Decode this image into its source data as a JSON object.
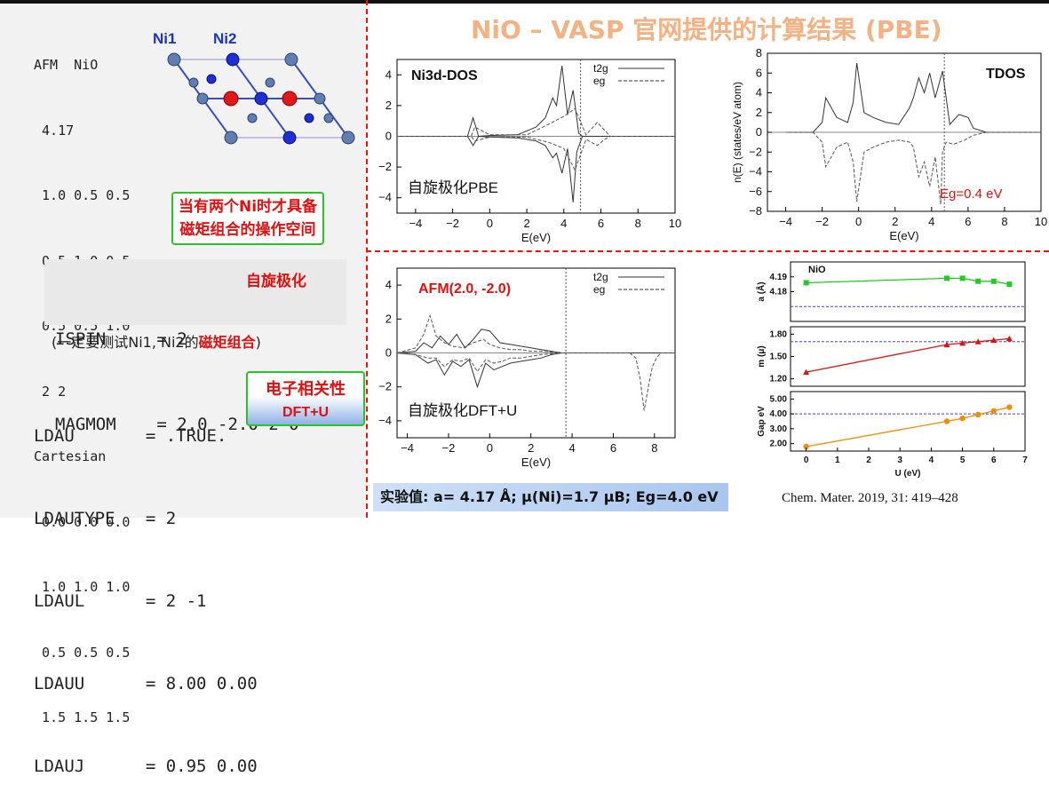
{
  "poscar": {
    "lines": [
      "AFM  NiO",
      " 4.17",
      " 1.0 0.5 0.5",
      " 0.5 1.0 0.5",
      " 0.5 0.5 1.0",
      " 2 2",
      "Cartesian",
      " 0.0 0.0 0.0",
      " 1.0 1.0 1.0",
      " 0.5 0.5 0.5",
      " 1.5 1.5 1.5"
    ]
  },
  "structure": {
    "ni1_label": "Ni1",
    "ni2_label": "Ni2"
  },
  "magnetic_note": {
    "line1": "当有两个Ni时才具备",
    "line2": "磁矩组合的操作空间"
  },
  "incar_spin": {
    "lines": [
      "ISPIN     = 2",
      "MAGMOM    = 2.0 -2.0 2*0"
    ],
    "label": "自旋极化",
    "note_before": "(一定要测试Ni1, Ni2的",
    "note_highlight": "磁矩组合",
    "note_after": ")"
  },
  "incar_ldau": {
    "lines": [
      "LDAU       = .TRUE.",
      "LDAUTYPE   = 2",
      "LDAUL      = 2 -1",
      "LDAUU      = 8.00 0.00",
      "LDAUJ      = 0.95 0.00"
    ],
    "box_line1": "电子相关性",
    "box_line2": "DFT+U"
  },
  "headline": "NiO – VASP 官网提供的计算结果 (PBE)",
  "experiment": {
    "label": "实验值:",
    "text": "a= 4.17 Å; μ(Ni)=1.7 μB; Eg=4.0 eV"
  },
  "citation": "Chem. Mater. 2019, 31: 419–428",
  "colors": {
    "accent_red": "#e01010",
    "green_border": "#28c428",
    "headline": "#f4b183",
    "dash": "#ee1111"
  },
  "chart_data": [
    {
      "id": "ni3d_pbe",
      "type": "line",
      "title": "Ni3d-DOS",
      "subtitle": "自旋极化PBE",
      "xlabel": "E(eV)",
      "ylabel": "",
      "xlim": [
        -5,
        10
      ],
      "ylim": [
        -5,
        5
      ],
      "xticks": [
        -4,
        -2,
        0,
        2,
        4,
        6,
        8,
        10
      ],
      "yticks": [
        -4,
        -2,
        0,
        2,
        4
      ],
      "fermi_x": 4.9,
      "legend": [
        "t2g",
        "eg"
      ],
      "series": [
        {
          "name": "t2g",
          "style": "solid",
          "x": [
            -5,
            -1.2,
            -0.9,
            -0.6,
            0,
            1.5,
            2.5,
            3.0,
            3.4,
            3.6,
            3.9,
            4.2,
            4.5,
            4.8,
            5,
            10
          ],
          "y": [
            0,
            0,
            1.2,
            0,
            0.05,
            0.1,
            0.6,
            1.2,
            2.5,
            2.0,
            4.6,
            1.4,
            3.0,
            0.2,
            0,
            0
          ]
        },
        {
          "name": "eg",
          "style": "dashed",
          "x": [
            -5,
            -1,
            -0.8,
            0,
            2,
            3.2,
            4.0,
            4.6,
            5.2,
            5.8,
            6.2,
            6.5,
            10
          ],
          "y": [
            0,
            0,
            0.6,
            0.1,
            0.1,
            0.8,
            1.3,
            1.8,
            0.1,
            0.9,
            0.4,
            0,
            0
          ]
        },
        {
          "name": "t2g-down",
          "style": "solid",
          "x": [
            -5,
            -1.2,
            -0.9,
            -0.6,
            0,
            1.5,
            2.5,
            3.0,
            3.4,
            3.6,
            3.9,
            4.2,
            4.5,
            4.7,
            5,
            10
          ],
          "y": [
            0,
            0,
            -0.6,
            0,
            -0.05,
            -0.1,
            -0.3,
            -0.6,
            -1.4,
            -1.1,
            -2.4,
            -0.8,
            -4.3,
            -1.0,
            0,
            0
          ]
        },
        {
          "name": "eg-down",
          "style": "dashed",
          "x": [
            -5,
            -1,
            -0.8,
            0,
            2,
            3.2,
            4.0,
            4.6,
            5.2,
            5.8,
            6.2,
            6.5,
            10
          ],
          "y": [
            0,
            0,
            -0.3,
            -0.05,
            -0.05,
            -0.4,
            -0.8,
            -2.2,
            -0.2,
            -0.6,
            -0.2,
            0,
            0
          ]
        }
      ]
    },
    {
      "id": "tdos_pbe",
      "type": "line",
      "title": "TDOS",
      "xlabel": "E(eV)",
      "ylabel": "n(E) (states/eV atom)",
      "xlim": [
        -5,
        10
      ],
      "ylim": [
        -8,
        8
      ],
      "xticks": [
        -4,
        -2,
        0,
        2,
        4,
        6,
        8,
        10
      ],
      "yticks": [
        -8,
        -6,
        -4,
        -2,
        0,
        2,
        4,
        6,
        8
      ],
      "fermi_x": 4.7,
      "annotation": "Eg=0.4 eV",
      "series": [
        {
          "name": "up",
          "style": "solid",
          "x": [
            -4,
            -2.5,
            -2.0,
            -1.8,
            -1.2,
            -0.6,
            -0.3,
            -0.1,
            0.3,
            0.8,
            1.5,
            2.2,
            2.8,
            3.0,
            3.3,
            3.6,
            3.9,
            4.2,
            4.6,
            5.0,
            5.5,
            6.0,
            6.3,
            7,
            10
          ],
          "y": [
            0,
            0,
            1,
            3.5,
            1.5,
            1.0,
            3.0,
            7.0,
            2.0,
            1.5,
            1.0,
            0.8,
            2.5,
            3.5,
            5.5,
            4.0,
            6.0,
            3.5,
            6.2,
            0.8,
            1.8,
            1.5,
            0.4,
            0,
            0
          ]
        },
        {
          "name": "down",
          "style": "dashed",
          "x": [
            -4,
            -2.5,
            -2.0,
            -1.8,
            -1.2,
            -0.6,
            -0.3,
            -0.1,
            0.3,
            0.8,
            1.5,
            2.2,
            2.8,
            3.0,
            3.3,
            3.6,
            3.9,
            4.2,
            4.5,
            4.6,
            4.8,
            5.2,
            5.8,
            6.3,
            7,
            10
          ],
          "y": [
            0,
            0,
            -1,
            -3.5,
            -1.5,
            -1.0,
            -3.0,
            -7.0,
            -2.0,
            -1.5,
            -1.0,
            -0.8,
            -1.0,
            -1.5,
            -4.5,
            -3.0,
            -5.5,
            -2.5,
            -7.3,
            -2.0,
            -1.0,
            -1.2,
            -0.8,
            -0.3,
            0,
            0
          ]
        }
      ]
    },
    {
      "id": "ni3d_dftu",
      "type": "line",
      "title": "AFM(2.0, -2.0)",
      "subtitle": "自旋极化DFT+U",
      "xlabel": "E(eV)",
      "ylabel": "",
      "xlim": [
        -4.5,
        9
      ],
      "ylim": [
        -5,
        5
      ],
      "xticks": [
        -4,
        -2,
        0,
        2,
        4,
        6,
        8
      ],
      "yticks": [
        -4,
        -2,
        0,
        2,
        4
      ],
      "fermi_x": 3.7,
      "legend": [
        "t2g",
        "eg"
      ],
      "series": [
        {
          "name": "t2g",
          "style": "solid",
          "x": [
            -4.5,
            -3.6,
            -3.2,
            -2.8,
            -2.4,
            -2.0,
            -1.6,
            -1.2,
            -0.8,
            -0.4,
            0,
            0.5,
            1.0,
            1.5,
            2.0,
            2.5,
            3.0,
            3.5,
            9
          ],
          "y": [
            0,
            0.1,
            0.6,
            0.3,
            1.0,
            0.5,
            1.1,
            0.3,
            0.8,
            1.4,
            1.3,
            0.6,
            0.5,
            0.4,
            0.3,
            0.2,
            0.1,
            0,
            0
          ]
        },
        {
          "name": "eg",
          "style": "dashed",
          "x": [
            -4.5,
            -3.6,
            -3.2,
            -2.9,
            -2.6,
            -2.2,
            -1.8,
            -1.3,
            -0.8,
            -0.3,
            0,
            0.5,
            1.0,
            1.5,
            2.0,
            2.5,
            3.0,
            3.5,
            9
          ],
          "y": [
            0,
            0.3,
            1.1,
            2.2,
            1.0,
            0.6,
            0.4,
            0.3,
            0.6,
            0.8,
            0.5,
            0.3,
            0.2,
            0.2,
            0.1,
            0.1,
            0.05,
            0,
            0
          ]
        },
        {
          "name": "t2g-down",
          "style": "solid",
          "x": [
            -4.5,
            -3.6,
            -3.0,
            -2.6,
            -2.2,
            -1.8,
            -1.4,
            -1.0,
            -0.6,
            -0.2,
            0.2,
            0.6,
            1.0,
            1.5,
            2.0,
            2.5,
            3.0,
            3.5,
            9
          ],
          "y": [
            0,
            -0.1,
            -0.6,
            -0.4,
            -1.3,
            -0.5,
            -0.8,
            -0.4,
            -2.0,
            -0.6,
            -1.0,
            -0.8,
            -0.6,
            -0.5,
            -0.4,
            -0.3,
            -0.1,
            0,
            0
          ]
        },
        {
          "name": "eg-down",
          "style": "dashed",
          "x": [
            -4.5,
            -3.6,
            -3.0,
            -2.6,
            -2.2,
            -1.8,
            -1.4,
            -1.0,
            -0.6,
            -0.2,
            0.2,
            0.6,
            1.0,
            1.5,
            2.0,
            2.5,
            3.0,
            3.5,
            6.8,
            7.1,
            7.3,
            7.5,
            7.7,
            7.9,
            8.1,
            8.3,
            9
          ],
          "y": [
            0,
            -0.1,
            -0.3,
            -0.3,
            -0.8,
            -0.4,
            -0.5,
            -0.3,
            -1.1,
            -0.4,
            -0.6,
            -0.5,
            -0.3,
            -0.3,
            -0.2,
            -0.1,
            -0.05,
            0,
            0,
            -0.3,
            -1.5,
            -3.4,
            -2.0,
            -0.8,
            -0.3,
            0,
            0
          ]
        }
      ]
    },
    {
      "id": "u_dependence",
      "type": "line",
      "title": "NiO",
      "xlabel": "U (eV)",
      "xlim": [
        -0.5,
        7
      ],
      "xticks": [
        0,
        1,
        2,
        3,
        4,
        5,
        6,
        7
      ],
      "panels": [
        {
          "ylabel": "a (Å)",
          "ylim": [
            4.16,
            4.2
          ],
          "yticks": [
            4.18,
            4.19
          ],
          "expt": 4.17,
          "color": "#22cc22",
          "marker": "square",
          "x": [
            0,
            4.5,
            5,
            5.5,
            6,
            6.5
          ],
          "y": [
            4.186,
            4.189,
            4.189,
            4.187,
            4.187,
            4.185
          ]
        },
        {
          "ylabel": "m (μ)",
          "ylim": [
            1.1,
            1.9
          ],
          "yticks": [
            1.2,
            1.5,
            1.8
          ],
          "expt": 1.7,
          "color": "#dd1111",
          "marker": "triangle",
          "x": [
            0,
            4.5,
            5,
            5.5,
            6,
            6.5
          ],
          "y": [
            1.29,
            1.66,
            1.68,
            1.7,
            1.72,
            1.74
          ]
        },
        {
          "ylabel": "Gap eV",
          "ylim": [
            1.5,
            5.5
          ],
          "yticks": [
            2.0,
            3.0,
            4.0,
            5.0
          ],
          "expt": 4.0,
          "color": "#f08c00",
          "marker": "circle",
          "x": [
            0,
            4.5,
            5,
            5.5,
            6,
            6.5
          ],
          "y": [
            1.8,
            3.5,
            3.7,
            3.95,
            4.2,
            4.45
          ]
        }
      ]
    }
  ]
}
